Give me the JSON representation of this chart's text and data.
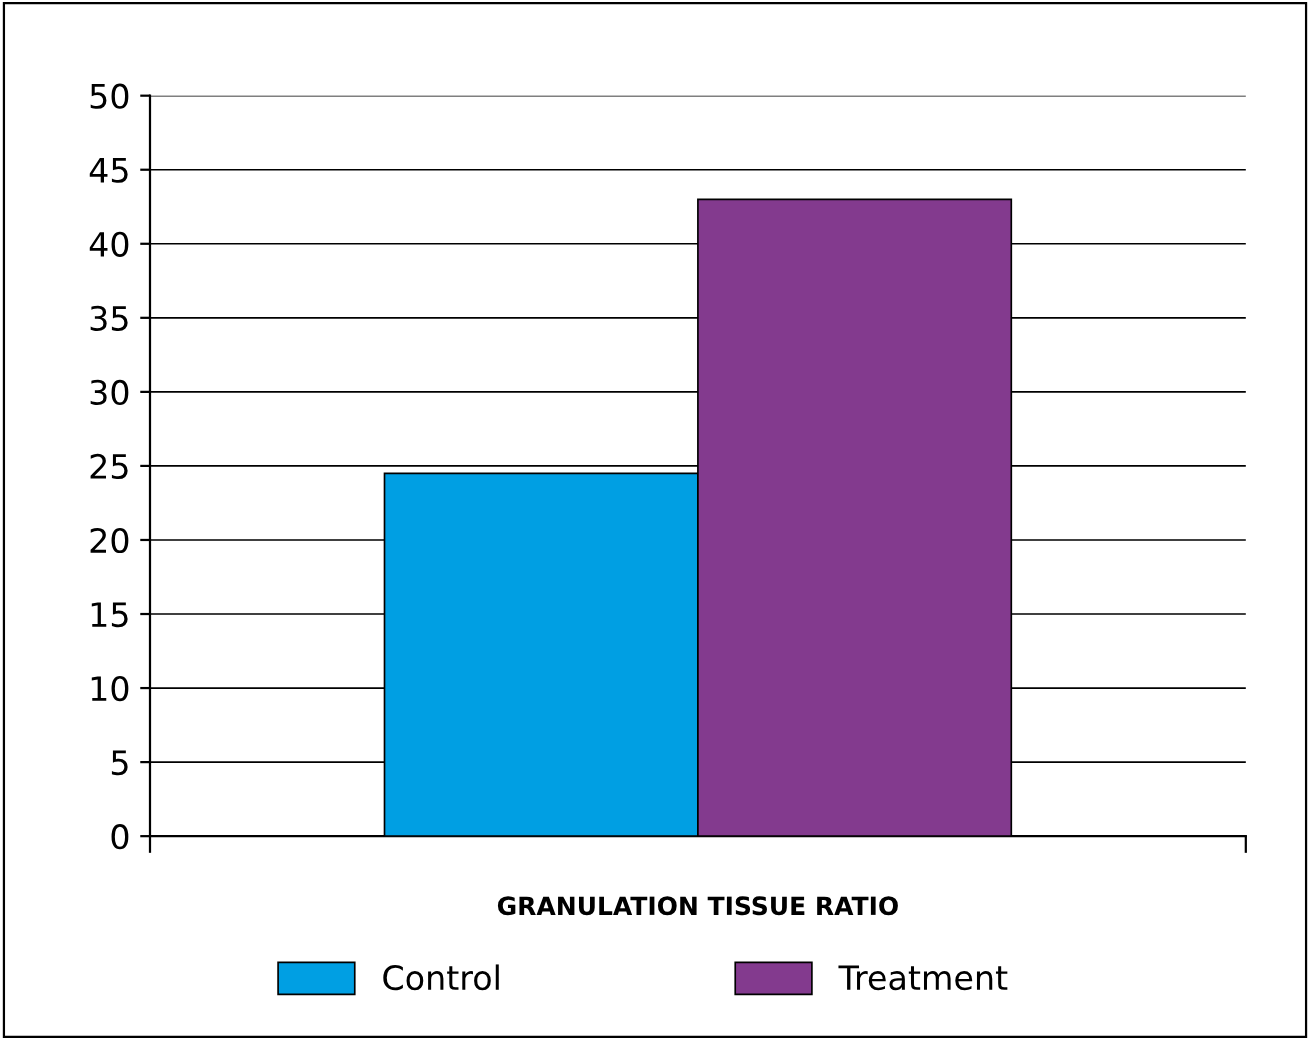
{
  "chart_data": {
    "type": "bar",
    "xlabel": "GRANULATION TISSUE RATIO",
    "categories": [
      null
    ],
    "series": [
      {
        "name": "Control",
        "color": "#009fe3",
        "values": [
          24.5
        ]
      },
      {
        "name": "Treatment",
        "color": "#833a8e",
        "values": [
          43
        ]
      }
    ],
    "ylim": [
      0,
      50
    ],
    "yticks": [
      0,
      5,
      10,
      15,
      20,
      25,
      30,
      35,
      40,
      45,
      50
    ],
    "grid": "y",
    "legend": "bottom"
  }
}
